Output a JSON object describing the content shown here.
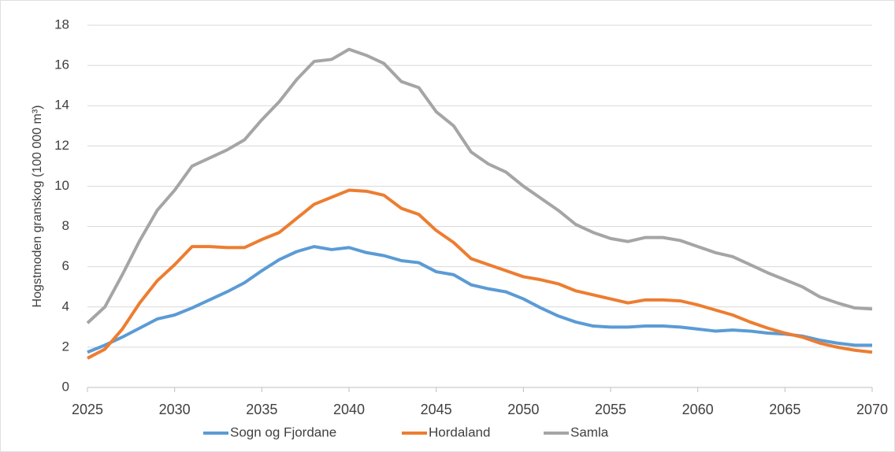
{
  "chart_data": {
    "type": "line",
    "y_label": "Hogstmoden granskog (100 000 m³)",
    "x": [
      2025,
      2026,
      2027,
      2028,
      2029,
      2030,
      2031,
      2032,
      2033,
      2034,
      2035,
      2036,
      2037,
      2038,
      2039,
      2040,
      2041,
      2042,
      2043,
      2044,
      2045,
      2046,
      2047,
      2048,
      2049,
      2050,
      2051,
      2052,
      2053,
      2054,
      2055,
      2056,
      2057,
      2058,
      2059,
      2060,
      2061,
      2062,
      2063,
      2064,
      2065,
      2066,
      2067,
      2068,
      2069,
      2070
    ],
    "series": [
      {
        "name": "Sogn og Fjordane",
        "color": "#5b9bd5",
        "values": [
          1.75,
          2.1,
          2.5,
          2.95,
          3.4,
          3.6,
          3.95,
          4.35,
          4.75,
          5.2,
          5.8,
          6.35,
          6.75,
          7.0,
          6.85,
          6.95,
          6.7,
          6.55,
          6.3,
          6.2,
          5.75,
          5.6,
          5.1,
          4.9,
          4.75,
          4.4,
          3.95,
          3.55,
          3.25,
          3.05,
          3.0,
          3.0,
          3.05,
          3.05,
          3.0,
          2.9,
          2.8,
          2.85,
          2.8,
          2.7,
          2.65,
          2.55,
          2.35,
          2.2,
          2.1,
          2.1
        ]
      },
      {
        "name": "Hordaland",
        "color": "#ed7d31",
        "values": [
          1.45,
          1.9,
          2.9,
          4.2,
          5.3,
          6.1,
          7.0,
          7.0,
          6.95,
          6.95,
          7.35,
          7.7,
          8.4,
          9.1,
          9.45,
          9.8,
          9.75,
          9.55,
          8.9,
          8.6,
          7.8,
          7.2,
          6.4,
          6.1,
          5.8,
          5.5,
          5.35,
          5.15,
          4.8,
          4.6,
          4.4,
          4.2,
          4.35,
          4.35,
          4.3,
          4.1,
          3.85,
          3.6,
          3.25,
          2.95,
          2.7,
          2.5,
          2.2,
          2.0,
          1.85,
          1.75
        ]
      },
      {
        "name": "Samla",
        "color": "#a5a5a5",
        "values": [
          3.2,
          4.0,
          5.6,
          7.3,
          8.8,
          9.8,
          11.0,
          11.4,
          11.8,
          12.3,
          13.3,
          14.2,
          15.3,
          16.2,
          16.3,
          16.8,
          16.5,
          16.1,
          15.2,
          14.9,
          13.7,
          13.0,
          11.7,
          11.1,
          10.7,
          10.0,
          9.4,
          8.8,
          8.1,
          7.7,
          7.4,
          7.25,
          7.45,
          7.45,
          7.3,
          7.0,
          6.7,
          6.5,
          6.1,
          5.7,
          5.35,
          5.0,
          4.5,
          4.2,
          3.95,
          3.9
        ]
      }
    ],
    "xlim": [
      2025,
      2070
    ],
    "xticks": [
      2025,
      2030,
      2035,
      2040,
      2045,
      2050,
      2055,
      2060,
      2065,
      2070
    ],
    "ylim": [
      0,
      18
    ],
    "yticks": [
      0,
      2,
      4,
      6,
      8,
      10,
      12,
      14,
      16,
      18
    ],
    "grid": true,
    "legend": "bottom"
  }
}
